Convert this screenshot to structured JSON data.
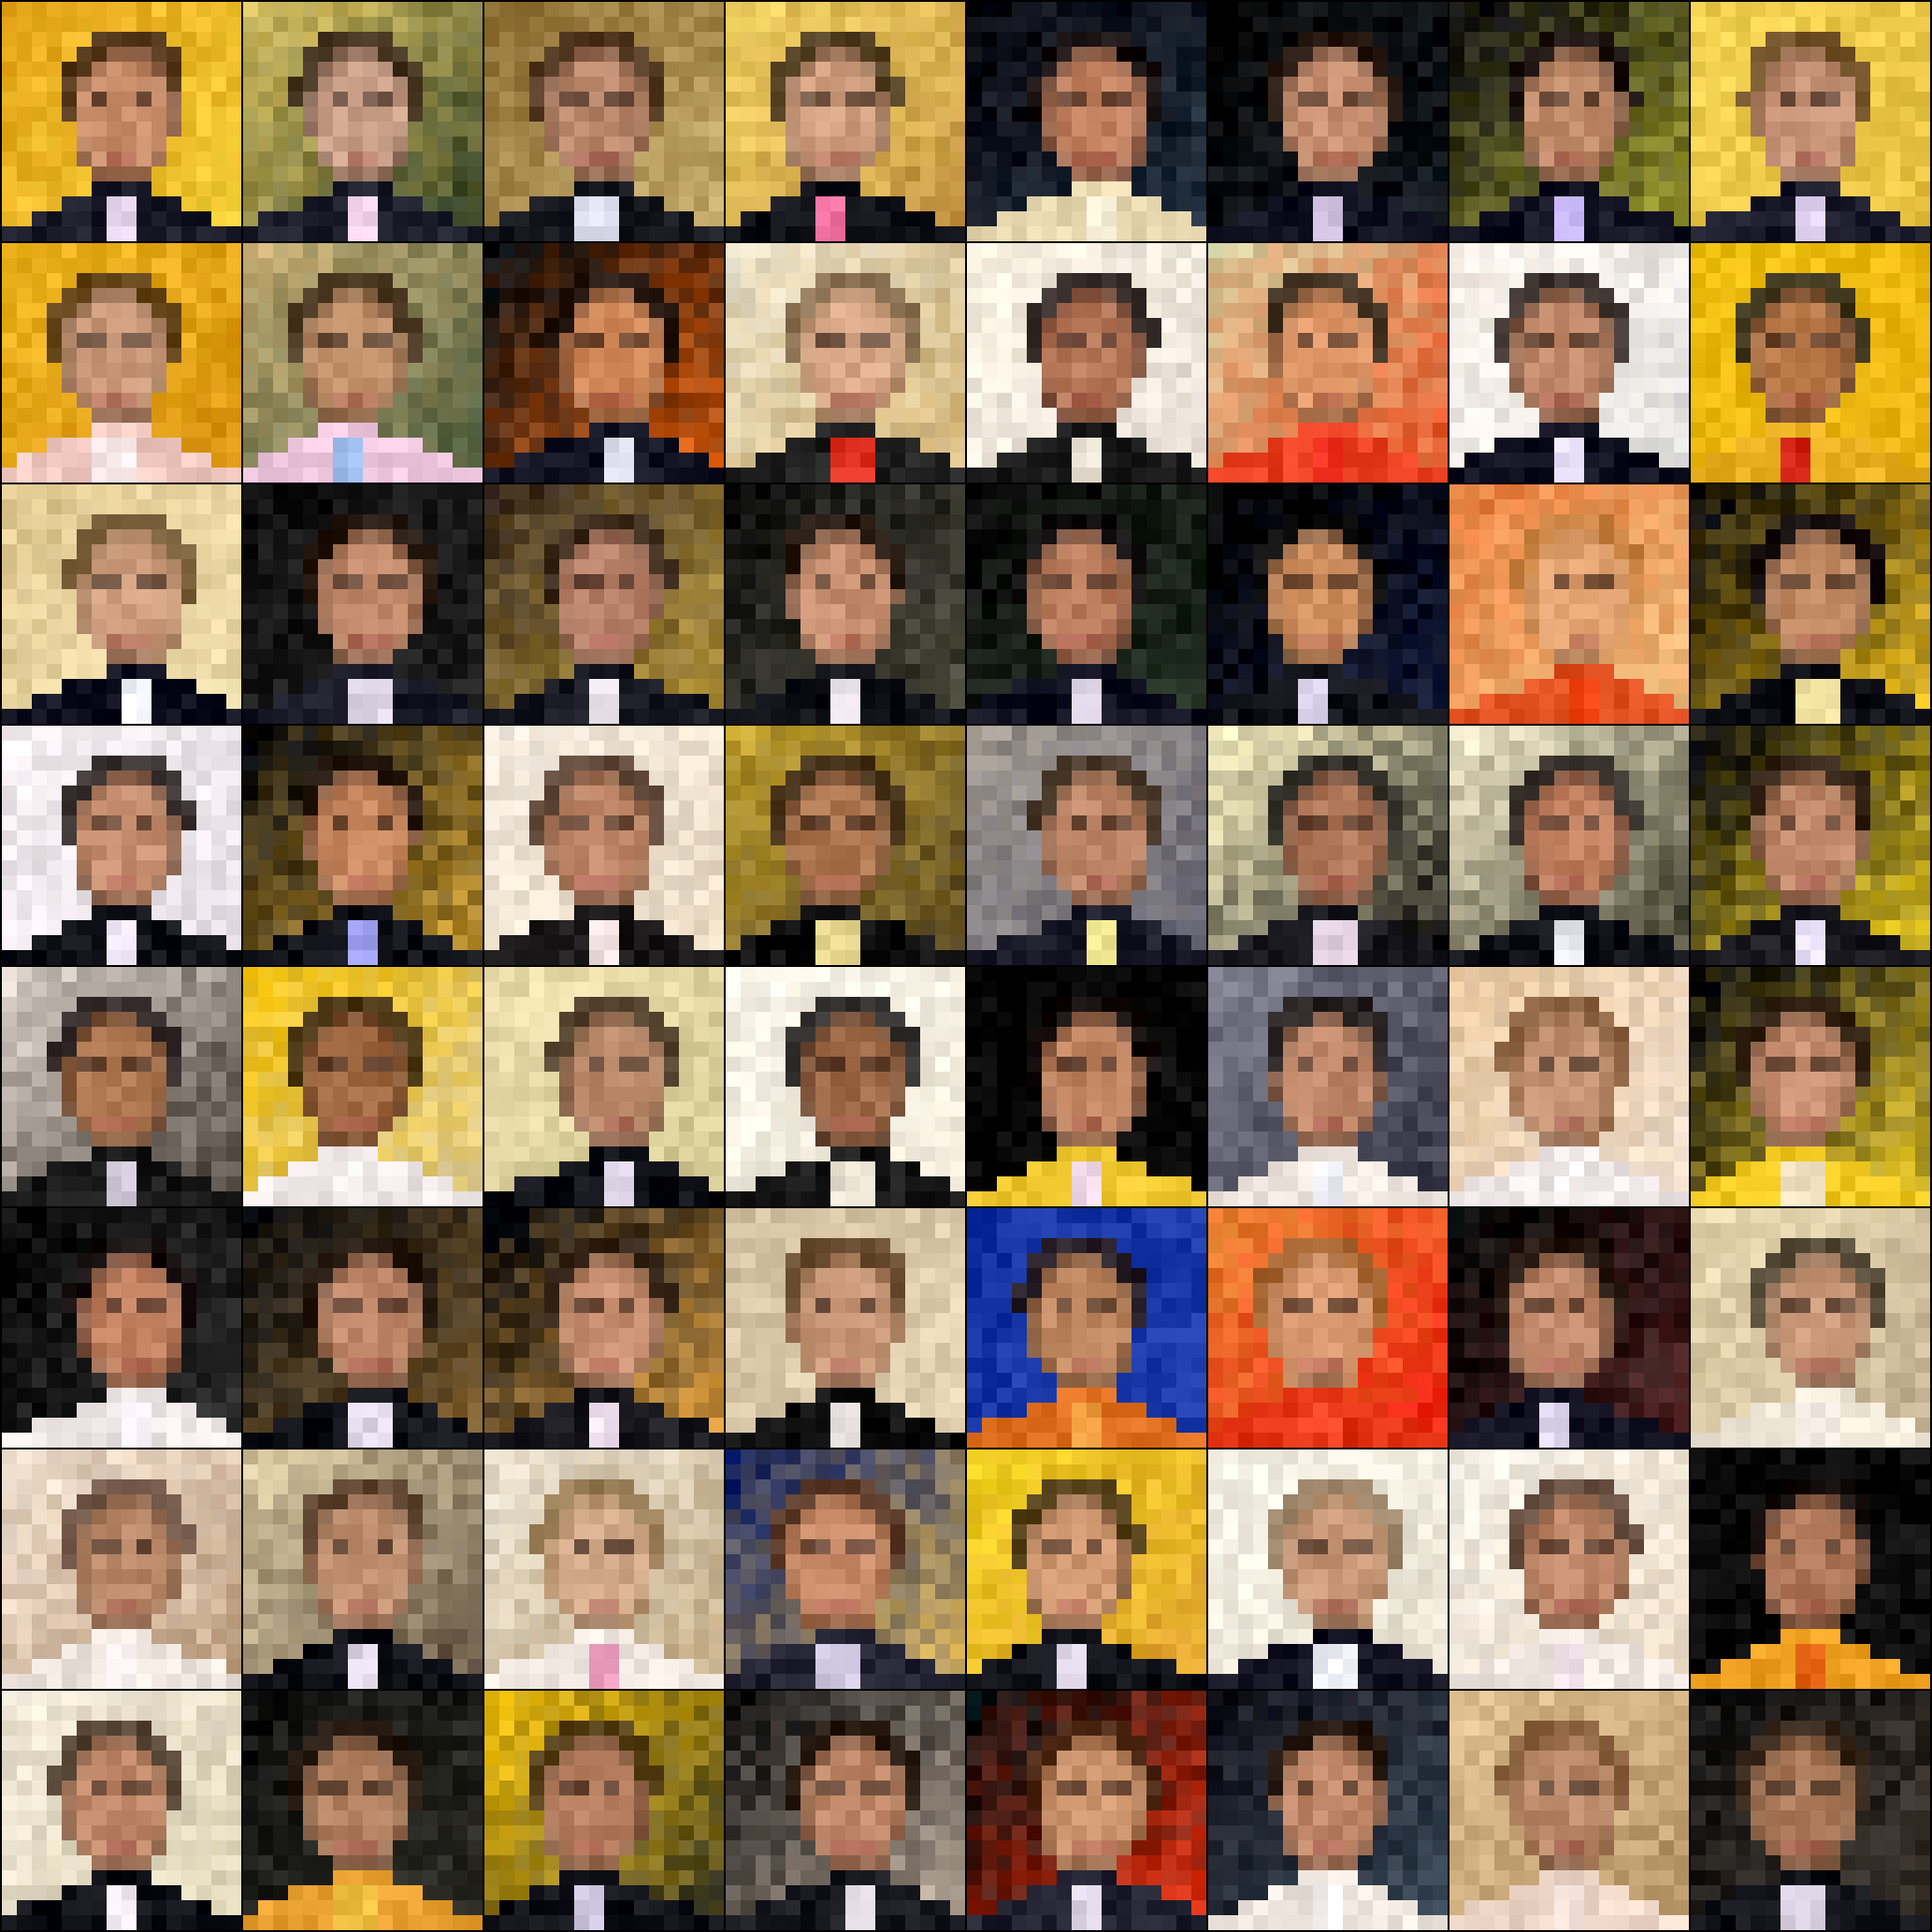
{
  "grid": {
    "rows": 8,
    "cols": 8,
    "pixels_per_side": 16,
    "subject_icon": "face-portrait-icon",
    "background_color": "#000000",
    "tiles": [
      {
        "bg": [
          "#e8a81c",
          "#f5d23a"
        ],
        "skin": "#c88d6a",
        "hair": "#3a2418",
        "shirt": "#1a1a28",
        "collar": "#e8d8f0"
      },
      {
        "bg": [
          "#d8c060",
          "#2a3a20"
        ],
        "skin": "#caa088",
        "hair": "#2a1a12",
        "shirt": "#1c1e2c",
        "collar": "#f0d0e8"
      },
      {
        "bg": [
          "#8a6a30",
          "#c8b070"
        ],
        "skin": "#b8866a",
        "hair": "#4a3020",
        "shirt": "#1a1a22",
        "collar": "#e0e0f0"
      },
      {
        "bg": [
          "#f0d060",
          "#c09040"
        ],
        "skin": "#d0a080",
        "hair": "#3a2818",
        "shirt": "#101018",
        "collar": "#f070a0"
      },
      {
        "bg": [
          "#080810",
          "#203040"
        ],
        "skin": "#c08060",
        "hair": "#1a1010",
        "shirt": "#e8d8b0",
        "collar": "#f0e8d0"
      },
      {
        "bg": [
          "#060606",
          "#101820"
        ],
        "skin": "#c89070",
        "hair": "#2a1a10",
        "shirt": "#101020",
        "collar": "#d0c0e0"
      },
      {
        "bg": [
          "#101010",
          "#a0a030"
        ],
        "skin": "#c08a68",
        "hair": "#1e1410",
        "shirt": "#121222",
        "collar": "#c0b0f0"
      },
      {
        "bg": [
          "#f0d050",
          "#e8c040"
        ],
        "skin": "#c89478",
        "hair": "#5a3a20",
        "shirt": "#181828",
        "collar": "#e8d8f8"
      },
      {
        "bg": [
          "#f0b820",
          "#d89010"
        ],
        "skin": "#c89878",
        "hair": "#4a3018",
        "shirt": "#f0c8c0",
        "collar": "#f8e8e8"
      },
      {
        "bg": [
          "#c0a870",
          "#506040"
        ],
        "skin": "#c0906a",
        "hair": "#3a2818",
        "shirt": "#f0c8e0",
        "collar": "#a0c0f0"
      },
      {
        "bg": [
          "#101010",
          "#e06010"
        ],
        "skin": "#d08858",
        "hair": "#2a1810",
        "shirt": "#101020",
        "collar": "#e0e0f0"
      },
      {
        "bg": [
          "#e8e0c8",
          "#d0b070"
        ],
        "skin": "#d8a888",
        "hair": "#7a6040",
        "shirt": "#202020",
        "collar": "#e03020"
      },
      {
        "bg": [
          "#f8f0e0",
          "#e8e0d8"
        ],
        "skin": "#b8785a",
        "hair": "#1a1010",
        "shirt": "#1a1a1a",
        "collar": "#e8e0d0"
      },
      {
        "bg": [
          "#d8c898",
          "#e85020"
        ],
        "skin": "#e09868",
        "hair": "#2a1a10",
        "shirt": "#e84020",
        "collar": "#f03020"
      },
      {
        "bg": [
          "#f8f0e8",
          "#e0e0e0"
        ],
        "skin": "#c08868",
        "hair": "#1e1410",
        "shirt": "#101020",
        "collar": "#e8e0f8"
      },
      {
        "bg": [
          "#f0c010",
          "#e8b010"
        ],
        "skin": "#b87848",
        "hair": "#1a1a1a",
        "shirt": "#e8b020",
        "collar": "#d02010"
      },
      {
        "bg": [
          "#e0c890",
          "#f0e0b0"
        ],
        "skin": "#d0a080",
        "hair": "#6a5030",
        "shirt": "#101020",
        "collar": "#f0f0f8"
      },
      {
        "bg": [
          "#101010",
          "#202020"
        ],
        "skin": "#c08868",
        "hair": "#2a1a10",
        "shirt": "#1a1a28",
        "collar": "#e0d8e8"
      },
      {
        "bg": [
          "#403020",
          "#c0a040"
        ],
        "skin": "#b88068",
        "hair": "#3a2818",
        "shirt": "#181822",
        "collar": "#e8e0e8"
      },
      {
        "bg": [
          "#101010",
          "#505040"
        ],
        "skin": "#c89070",
        "hair": "#2a1a10",
        "shirt": "#101018",
        "collar": "#f0e8f0"
      },
      {
        "bg": [
          "#0a0a0a",
          "#203020"
        ],
        "skin": "#b87a5a",
        "hair": "#121010",
        "shirt": "#101020",
        "collar": "#d8d0e0"
      },
      {
        "bg": [
          "#000000",
          "#101838"
        ],
        "skin": "#d09060",
        "hair": "#101010",
        "shirt": "#101018",
        "collar": "#e0d8f0"
      },
      {
        "bg": [
          "#e88040",
          "#f0c080"
        ],
        "skin": "#e0a070",
        "hair": "#c08040",
        "shirt": "#e05020",
        "collar": "#f04010"
      },
      {
        "bg": [
          "#080808",
          "#f0c020"
        ],
        "skin": "#c08860",
        "hair": "#1a1010",
        "shirt": "#101018",
        "collar": "#f0e0a0"
      },
      {
        "bg": [
          "#f4eef0",
          "#e8e0e8"
        ],
        "skin": "#c89070",
        "hair": "#1a1210",
        "shirt": "#101018",
        "collar": "#e8e0f0"
      },
      {
        "bg": [
          "#101010",
          "#d0a030"
        ],
        "skin": "#c88860",
        "hair": "#2a1a10",
        "shirt": "#101018",
        "collar": "#a0a0f0"
      },
      {
        "bg": [
          "#f4ece0",
          "#e8d8c0"
        ],
        "skin": "#c08868",
        "hair": "#4a3020",
        "shirt": "#1a1818",
        "collar": "#f0e0e0"
      },
      {
        "bg": [
          "#c0a030",
          "#504020"
        ],
        "skin": "#b07850",
        "hair": "#2a1a10",
        "shirt": "#101010",
        "collar": "#e8d890"
      },
      {
        "bg": [
          "#a09890",
          "#606070"
        ],
        "skin": "#c08868",
        "hair": "#3a2818",
        "shirt": "#1a1a28",
        "collar": "#f0e890"
      },
      {
        "bg": [
          "#f8f0c0",
          "#101010"
        ],
        "skin": "#b07858",
        "hair": "#101010",
        "shirt": "#1a1a20",
        "collar": "#e0d0e0"
      },
      {
        "bg": [
          "#f0e8c8",
          "#303020"
        ],
        "skin": "#c08060",
        "hair": "#1a1210",
        "shirt": "#101018",
        "collar": "#e8e8f0"
      },
      {
        "bg": [
          "#101010",
          "#f0d020"
        ],
        "skin": "#c08868",
        "hair": "#3a2818",
        "shirt": "#1a1a20",
        "collar": "#e8e0f8"
      },
      {
        "bg": [
          "#d8d0c8",
          "#403830"
        ],
        "skin": "#b07850",
        "hair": "#1a1010",
        "shirt": "#181818",
        "collar": "#d0c8d8"
      },
      {
        "bg": [
          "#f0c010",
          "#e0d0a0"
        ],
        "skin": "#a06840",
        "hair": "#2a1a10",
        "shirt": "#f0e8e8",
        "collar": "#f8f0f0"
      },
      {
        "bg": [
          "#f0e0b0",
          "#d0c890"
        ],
        "skin": "#b88868",
        "hair": "#3a2818",
        "shirt": "#101018",
        "collar": "#e0d8e8"
      },
      {
        "bg": [
          "#f8f4e8",
          "#f0e8d8"
        ],
        "skin": "#a06a48",
        "hair": "#101010",
        "shirt": "#181818",
        "collar": "#e8e0d0"
      },
      {
        "bg": [
          "#000000",
          "#080808"
        ],
        "skin": "#c08460",
        "hair": "#1a1010",
        "shirt": "#f0c830",
        "collar": "#f0d8e8"
      },
      {
        "bg": [
          "#808090",
          "#303040"
        ],
        "skin": "#c08868",
        "hair": "#1a1210",
        "shirt": "#f0e8e0",
        "collar": "#f0f0f8"
      },
      {
        "bg": [
          "#e8c8a0",
          "#f0e0d0"
        ],
        "skin": "#c09070",
        "hair": "#7a5030",
        "shirt": "#f0e8e8",
        "collar": "#f8f0f0"
      },
      {
        "bg": [
          "#0a0a0a",
          "#f0d030"
        ],
        "skin": "#c89070",
        "hair": "#3a2818",
        "shirt": "#f0c820",
        "collar": "#f0e0c0"
      },
      {
        "bg": [
          "#080808",
          "#303030"
        ],
        "skin": "#c08060",
        "hair": "#1a1010",
        "shirt": "#f0e8e8",
        "collar": "#f8f0f8"
      },
      {
        "bg": [
          "#101010",
          "#806030"
        ],
        "skin": "#c08868",
        "hair": "#2a1a10",
        "shirt": "#101018",
        "collar": "#e0d8e8"
      },
      {
        "bg": [
          "#101010",
          "#e0a040"
        ],
        "skin": "#c89070",
        "hair": "#3a2818",
        "shirt": "#1a1a20",
        "collar": "#f0e0f0"
      },
      {
        "bg": [
          "#d0c0a0",
          "#e8d8b8"
        ],
        "skin": "#c89878",
        "hair": "#5a3a20",
        "shirt": "#101010",
        "collar": "#e8e0e0"
      },
      {
        "bg": [
          "#1030a0",
          "#2040b0"
        ],
        "skin": "#c08860",
        "hair": "#2a1a10",
        "shirt": "#e07020",
        "collar": "#f0a040"
      },
      {
        "bg": [
          "#e88030",
          "#f02010"
        ],
        "skin": "#d89870",
        "hair": "#9a6030",
        "shirt": "#e03010",
        "collar": "#f04020"
      },
      {
        "bg": [
          "#080808",
          "#502020"
        ],
        "skin": "#c08868",
        "hair": "#2a1a10",
        "shirt": "#101020",
        "collar": "#e0d8f0"
      },
      {
        "bg": [
          "#e8d8b0",
          "#c0b090"
        ],
        "skin": "#c89878",
        "hair": "#3a3020",
        "shirt": "#f0e8d8",
        "collar": "#f8f0e8"
      },
      {
        "bg": [
          "#f0e0d0",
          "#c0a080"
        ],
        "skin": "#b88868",
        "hair": "#5a4030",
        "shirt": "#f0e8e0",
        "collar": "#f8f0f0"
      },
      {
        "bg": [
          "#d8c8a0",
          "#605040"
        ],
        "skin": "#c09070",
        "hair": "#4a3020",
        "shirt": "#101018",
        "collar": "#e0d8e8"
      },
      {
        "bg": [
          "#e8e0d0",
          "#c0a880"
        ],
        "skin": "#d0a888",
        "hair": "#8a6a40",
        "shirt": "#f0e8e0",
        "collar": "#f0a0c0"
      },
      {
        "bg": [
          "#102060",
          "#e8c060"
        ],
        "skin": "#c88a68",
        "hair": "#6a4020",
        "shirt": "#202030",
        "collar": "#d0c8e0"
      },
      {
        "bg": [
          "#f0d020",
          "#e0a030"
        ],
        "skin": "#d09870",
        "hair": "#3a2818",
        "shirt": "#101018",
        "collar": "#e0d8e8"
      },
      {
        "bg": [
          "#f8f4e8",
          "#e8e0d0"
        ],
        "skin": "#c89878",
        "hair": "#8a7050",
        "shirt": "#101020",
        "collar": "#f0f0f8"
      },
      {
        "bg": [
          "#f4f0e8",
          "#e8d8c0"
        ],
        "skin": "#c08868",
        "hair": "#4a3020",
        "shirt": "#f0e8e0",
        "collar": "#f0e0e8"
      },
      {
        "bg": [
          "#050505",
          "#101010"
        ],
        "skin": "#b07858",
        "hair": "#1a1010",
        "shirt": "#f0a020",
        "collar": "#e06010"
      },
      {
        "bg": [
          "#f0e8d8",
          "#d8d0b0"
        ],
        "skin": "#c08868",
        "hair": "#3a2818",
        "shirt": "#101018",
        "collar": "#f0e8f0"
      },
      {
        "bg": [
          "#101010",
          "#303028"
        ],
        "skin": "#b08060",
        "hair": "#2a1a10",
        "shirt": "#e8a030",
        "collar": "#f0c040"
      },
      {
        "bg": [
          "#f0c010",
          "#303020"
        ],
        "skin": "#b88060",
        "hair": "#3a2818",
        "shirt": "#101018",
        "collar": "#d0c8e0"
      },
      {
        "bg": [
          "#101010",
          "#c0b0a0"
        ],
        "skin": "#c08868",
        "hair": "#2a1a10",
        "shirt": "#181820",
        "collar": "#e8e0e8"
      },
      {
        "bg": [
          "#101010",
          "#e03010"
        ],
        "skin": "#d09870",
        "hair": "#5a3018",
        "shirt": "#202030",
        "collar": "#e0d8e8"
      },
      {
        "bg": [
          "#101018",
          "#405060"
        ],
        "skin": "#c08868",
        "hair": "#2a1a10",
        "shirt": "#f0e8e0",
        "collar": "#f8f0f0"
      },
      {
        "bg": [
          "#e0c090",
          "#b09060"
        ],
        "skin": "#b88868",
        "hair": "#7a5030",
        "shirt": "#f0d8c8",
        "collar": "#f8e8e0"
      },
      {
        "bg": [
          "#101010",
          "#403830"
        ],
        "skin": "#a87858",
        "hair": "#3a2818",
        "shirt": "#101018",
        "collar": "#d8d0e0"
      }
    ]
  }
}
